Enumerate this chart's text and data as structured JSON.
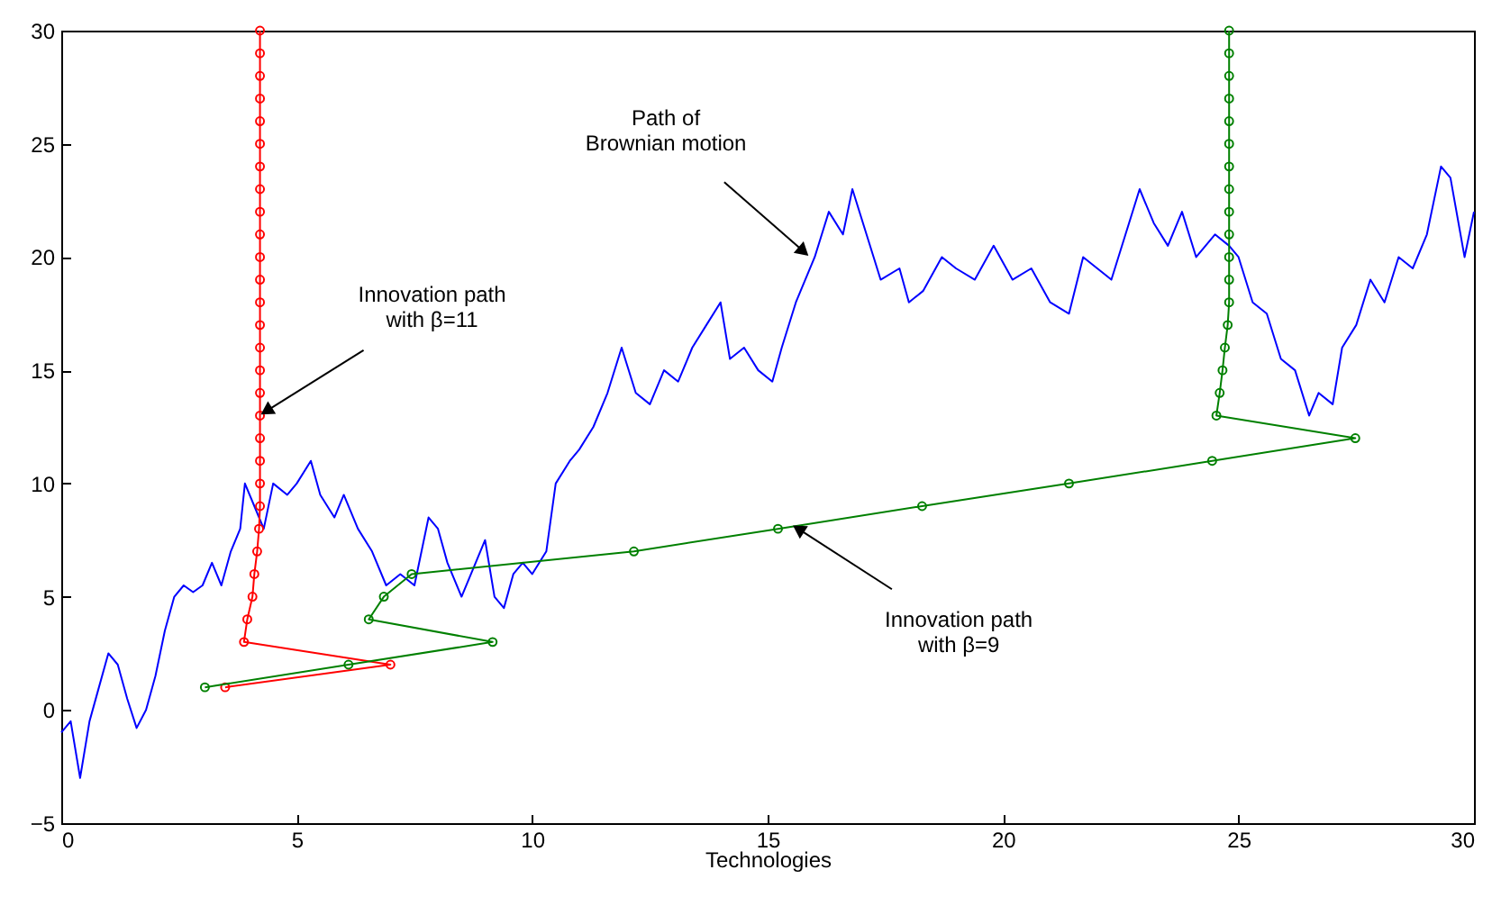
{
  "chart_data": {
    "type": "line",
    "xlabel": "Technologies",
    "xlim": [
      0,
      30
    ],
    "ylim": [
      -5,
      30
    ],
    "xticks": [
      0,
      5,
      10,
      15,
      20,
      25,
      30
    ],
    "yticks": [
      -5,
      0,
      5,
      10,
      15,
      20,
      25,
      30
    ],
    "grid": false,
    "series": [
      {
        "color": "#0000ff",
        "marker": "none",
        "x": [
          0,
          0.2,
          0.4,
          0.6,
          0.8,
          1.0,
          1.2,
          1.4,
          1.6,
          1.8,
          2.0,
          2.2,
          2.4,
          2.6,
          2.8,
          3.0,
          3.2,
          3.4,
          3.6,
          3.8,
          3.9,
          4.1,
          4.3,
          4.5,
          4.8,
          5.0,
          5.3,
          5.5,
          5.8,
          6.0,
          6.3,
          6.6,
          6.9,
          7.2,
          7.5,
          7.8,
          8.0,
          8.2,
          8.5,
          8.8,
          9.0,
          9.2,
          9.4,
          9.6,
          9.8,
          10.0,
          10.3,
          10.5,
          10.8,
          11.0,
          11.3,
          11.6,
          11.9,
          12.2,
          12.5,
          12.8,
          13.1,
          13.4,
          13.7,
          14.0,
          14.2,
          14.5,
          14.8,
          15.1,
          15.3,
          15.6,
          16.0,
          16.3,
          16.6,
          16.8,
          17.1,
          17.4,
          17.8,
          18.0,
          18.3,
          18.7,
          19.0,
          19.4,
          19.8,
          20.2,
          20.6,
          21.0,
          21.4,
          21.7,
          22.0,
          22.3,
          22.6,
          22.9,
          23.2,
          23.5,
          23.8,
          24.1,
          24.5,
          24.8,
          25.0,
          25.3,
          25.6,
          25.9,
          26.2,
          26.5,
          26.7,
          27.0,
          27.2,
          27.5,
          27.8,
          28.1,
          28.4,
          28.7,
          29.0,
          29.3,
          29.5,
          29.8,
          30
        ],
        "values": [
          -1,
          -0.5,
          -3,
          -0.5,
          1,
          2.5,
          2,
          0.5,
          -0.8,
          0,
          1.5,
          3.5,
          5,
          5.5,
          5.2,
          5.5,
          6.5,
          5.5,
          7,
          8,
          10,
          9,
          8,
          10,
          9.5,
          10,
          11,
          9.5,
          8.5,
          9.5,
          8,
          7,
          5.5,
          6,
          5.5,
          8.5,
          8,
          6.5,
          5,
          6.5,
          7.5,
          5,
          4.5,
          6,
          6.5,
          6,
          7,
          10,
          11,
          11.5,
          12.5,
          14,
          16,
          14,
          13.5,
          15,
          14.5,
          16,
          17,
          18,
          15.5,
          16,
          15,
          14.5,
          16,
          18,
          20,
          22,
          21,
          23,
          21,
          19,
          19.5,
          18,
          18.5,
          20,
          19.5,
          19,
          20.5,
          19,
          19.5,
          18,
          17.5,
          20,
          19.5,
          19,
          21,
          23,
          21.5,
          20.5,
          22,
          20,
          21,
          20.5,
          20,
          18,
          17.5,
          15.5,
          15,
          13,
          14,
          13.5,
          16,
          17,
          19,
          18,
          20,
          19.5,
          21,
          24,
          23.5,
          20,
          22
        ]
      },
      {
        "color": "#ff0000",
        "marker": "circle",
        "x": [
          3.48,
          6.99,
          3.88,
          3.95,
          4.06,
          4.1,
          4.16,
          4.2,
          4.22,
          4.22,
          4.22,
          4.22,
          4.22,
          4.22,
          4.22,
          4.22,
          4.22,
          4.22,
          4.22,
          4.22,
          4.22,
          4.22,
          4.22,
          4.22,
          4.22,
          4.22,
          4.22,
          4.22,
          4.22,
          4.22
        ],
        "values": [
          1,
          2,
          3,
          4,
          5,
          6,
          7,
          8,
          9,
          10,
          11,
          12,
          13,
          14,
          15,
          16,
          17,
          18,
          19,
          20,
          21,
          22,
          23,
          24,
          25,
          26,
          27,
          28,
          29,
          30
        ]
      },
      {
        "color": "#008000",
        "marker": "circle",
        "x": [
          3.05,
          6.1,
          9.16,
          6.53,
          6.85,
          7.44,
          12.16,
          15.22,
          18.28,
          21.4,
          24.44,
          27.48,
          24.53,
          24.6,
          24.66,
          24.71,
          24.77,
          24.8,
          24.8,
          24.8,
          24.8,
          24.8,
          24.8,
          24.8,
          24.8,
          24.8,
          24.8,
          24.8,
          24.8,
          24.8
        ],
        "values": [
          1,
          2,
          3,
          4,
          5,
          6,
          7,
          8,
          9,
          10,
          11,
          12,
          13,
          14,
          15,
          16,
          17,
          18,
          19,
          20,
          21,
          22,
          23,
          24,
          25,
          26,
          27,
          28,
          29,
          30
        ]
      }
    ],
    "annotations": [
      {
        "text": "Path of\nBrownian motion",
        "x": 15.9,
        "y": 20
      },
      {
        "text": "Innovation path\nwith β=11",
        "x": 4.2,
        "y": 13
      },
      {
        "text": "Innovation path\nwith β=9",
        "x": 15.5,
        "y": 8.2
      }
    ]
  }
}
